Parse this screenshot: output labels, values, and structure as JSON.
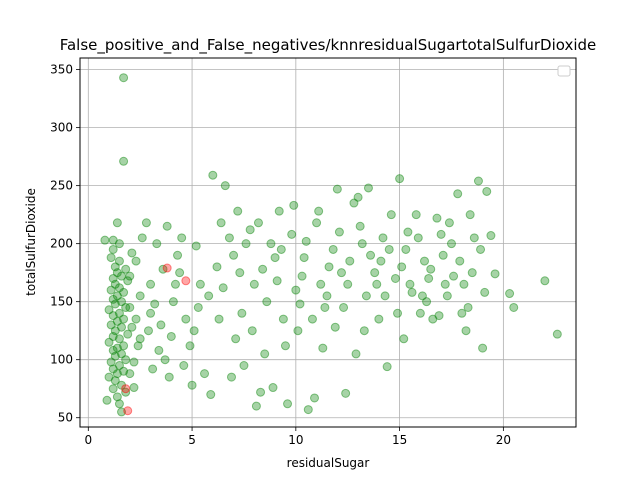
{
  "chart_data": {
    "type": "scatter",
    "title": "False_positive_and_False_negatives/knnresidualSugartotalSulfurDioxide",
    "xlabel": "residualSugar",
    "ylabel": "totalSulfurDioxide",
    "xlim": [
      -0.4,
      23.5
    ],
    "ylim": [
      42,
      360
    ],
    "x_ticks": [
      0,
      5,
      10,
      15,
      20
    ],
    "y_ticks": [
      50,
      100,
      150,
      200,
      250,
      300,
      350
    ],
    "grid": true,
    "legend": {
      "placement": "top-right",
      "entries": []
    },
    "colors": {
      "correct": "#008000",
      "misclassified": "#ff0000"
    },
    "marker_alpha": 0.35,
    "series": [
      {
        "color": "#008000",
        "points": [
          [
            1.7,
            343
          ],
          [
            1.7,
            271
          ],
          [
            1.4,
            218
          ],
          [
            1.2,
            203
          ],
          [
            0.8,
            203
          ],
          [
            1.5,
            200
          ],
          [
            1.2,
            195
          ],
          [
            1.1,
            188
          ],
          [
            1.5,
            185
          ],
          [
            1.3,
            180
          ],
          [
            1.8,
            178
          ],
          [
            1.4,
            175
          ],
          [
            1.6,
            172
          ],
          [
            1.2,
            170
          ],
          [
            1.9,
            168
          ],
          [
            1.3,
            165
          ],
          [
            1.5,
            162
          ],
          [
            1.1,
            160
          ],
          [
            1.7,
            158
          ],
          [
            1.4,
            155
          ],
          [
            1.2,
            152
          ],
          [
            1.6,
            150
          ],
          [
            1.3,
            148
          ],
          [
            1.8,
            145
          ],
          [
            1.0,
            143
          ],
          [
            1.5,
            140
          ],
          [
            1.2,
            138
          ],
          [
            1.7,
            135
          ],
          [
            1.4,
            133
          ],
          [
            1.1,
            130
          ],
          [
            1.6,
            128
          ],
          [
            1.3,
            125
          ],
          [
            1.9,
            122
          ],
          [
            1.2,
            120
          ],
          [
            1.5,
            118
          ],
          [
            1.0,
            115
          ],
          [
            1.7,
            112
          ],
          [
            1.4,
            110
          ],
          [
            1.2,
            108
          ],
          [
            1.6,
            105
          ],
          [
            1.3,
            103
          ],
          [
            1.8,
            100
          ],
          [
            1.1,
            98
          ],
          [
            1.5,
            95
          ],
          [
            1.2,
            92
          ],
          [
            1.7,
            90
          ],
          [
            1.4,
            88
          ],
          [
            1.0,
            85
          ],
          [
            1.3,
            82
          ],
          [
            1.6,
            78
          ],
          [
            1.2,
            75
          ],
          [
            1.8,
            72
          ],
          [
            1.4,
            68
          ],
          [
            0.9,
            65
          ],
          [
            1.5,
            62
          ],
          [
            1.6,
            55
          ],
          [
            2.1,
            128
          ],
          [
            2.3,
            135
          ],
          [
            2.0,
            145
          ],
          [
            2.4,
            112
          ],
          [
            2.2,
            98
          ],
          [
            2.5,
            155
          ],
          [
            2.0,
            172
          ],
          [
            2.3,
            185
          ],
          [
            2.1,
            192
          ],
          [
            2.6,
            205
          ],
          [
            2.8,
            218
          ],
          [
            2.0,
            88
          ],
          [
            2.2,
            76
          ],
          [
            2.5,
            118
          ],
          [
            3.0,
            165
          ],
          [
            3.2,
            148
          ],
          [
            2.9,
            125
          ],
          [
            3.4,
            108
          ],
          [
            3.1,
            92
          ],
          [
            3.6,
            178
          ],
          [
            3.3,
            200
          ],
          [
            3.8,
            215
          ],
          [
            3.0,
            140
          ],
          [
            3.5,
            130
          ],
          [
            3.7,
            100
          ],
          [
            3.9,
            85
          ],
          [
            4.1,
            150
          ],
          [
            4.3,
            190
          ],
          [
            4.0,
            120
          ],
          [
            4.5,
            205
          ],
          [
            4.2,
            165
          ],
          [
            4.4,
            175
          ],
          [
            4.7,
            135
          ],
          [
            4.9,
            112
          ],
          [
            4.6,
            95
          ],
          [
            5.0,
            78
          ],
          [
            5.2,
            198
          ],
          [
            5.4,
            165
          ],
          [
            5.1,
            125
          ],
          [
            5.6,
            88
          ],
          [
            5.3,
            145
          ],
          [
            5.8,
            155
          ],
          [
            6.0,
            259
          ],
          [
            6.2,
            180
          ],
          [
            5.9,
            70
          ],
          [
            6.4,
            218
          ],
          [
            6.6,
            250
          ],
          [
            6.3,
            135
          ],
          [
            6.8,
            205
          ],
          [
            6.5,
            162
          ],
          [
            7.0,
            190
          ],
          [
            7.2,
            228
          ],
          [
            6.9,
            85
          ],
          [
            7.4,
            140
          ],
          [
            7.1,
            118
          ],
          [
            7.6,
            200
          ],
          [
            7.3,
            175
          ],
          [
            7.8,
            212
          ],
          [
            7.5,
            95
          ],
          [
            8.0,
            165
          ],
          [
            8.2,
            218
          ],
          [
            7.9,
            125
          ],
          [
            8.4,
            178
          ],
          [
            8.1,
            60
          ],
          [
            8.6,
            150
          ],
          [
            8.3,
            72
          ],
          [
            8.8,
            200
          ],
          [
            8.5,
            105
          ],
          [
            9.0,
            188
          ],
          [
            9.2,
            228
          ],
          [
            8.9,
            76
          ],
          [
            9.4,
            135
          ],
          [
            9.1,
            168
          ],
          [
            9.6,
            62
          ],
          [
            9.3,
            195
          ],
          [
            9.8,
            208
          ],
          [
            9.5,
            112
          ],
          [
            10.0,
            160
          ],
          [
            10.2,
            148
          ],
          [
            9.9,
            233
          ],
          [
            10.4,
            188
          ],
          [
            10.1,
            125
          ],
          [
            10.6,
            57
          ],
          [
            10.3,
            172
          ],
          [
            10.8,
            135
          ],
          [
            10.5,
            202
          ],
          [
            11.0,
            218
          ],
          [
            11.2,
            165
          ],
          [
            10.9,
            67
          ],
          [
            11.4,
            145
          ],
          [
            11.1,
            228
          ],
          [
            11.6,
            180
          ],
          [
            11.3,
            110
          ],
          [
            11.8,
            195
          ],
          [
            11.5,
            155
          ],
          [
            12.0,
            247
          ],
          [
            12.2,
            175
          ],
          [
            11.9,
            128
          ],
          [
            12.4,
            71
          ],
          [
            12.1,
            210
          ],
          [
            12.6,
            185
          ],
          [
            12.3,
            145
          ],
          [
            12.8,
            235
          ],
          [
            12.5,
            165
          ],
          [
            13.0,
            240
          ],
          [
            13.2,
            200
          ],
          [
            12.9,
            105
          ],
          [
            13.4,
            155
          ],
          [
            13.1,
            215
          ],
          [
            13.6,
            190
          ],
          [
            13.3,
            125
          ],
          [
            13.8,
            175
          ],
          [
            13.5,
            248
          ],
          [
            14.0,
            135
          ],
          [
            14.2,
            205
          ],
          [
            13.9,
            165
          ],
          [
            14.4,
            94
          ],
          [
            14.1,
            185
          ],
          [
            14.6,
            225
          ],
          [
            14.3,
            155
          ],
          [
            14.8,
            170
          ],
          [
            14.5,
            195
          ],
          [
            15.0,
            256
          ],
          [
            15.2,
            118
          ],
          [
            14.9,
            140
          ],
          [
            15.4,
            210
          ],
          [
            15.1,
            180
          ],
          [
            15.6,
            158
          ],
          [
            15.3,
            195
          ],
          [
            15.8,
            225
          ],
          [
            15.5,
            165
          ],
          [
            16.0,
            140
          ],
          [
            16.2,
            185
          ],
          [
            15.9,
            205
          ],
          [
            16.4,
            170
          ],
          [
            16.1,
            155
          ],
          [
            16.6,
            135
          ],
          [
            16.3,
            150
          ],
          [
            16.8,
            222
          ],
          [
            16.5,
            178
          ],
          [
            17.0,
            208
          ],
          [
            17.2,
            165
          ],
          [
            16.9,
            138
          ],
          [
            17.4,
            218
          ],
          [
            17.1,
            190
          ],
          [
            17.6,
            172
          ],
          [
            17.3,
            155
          ],
          [
            17.8,
            243
          ],
          [
            17.5,
            200
          ],
          [
            18.0,
            140
          ],
          [
            18.2,
            125
          ],
          [
            17.9,
            185
          ],
          [
            18.4,
            225
          ],
          [
            18.1,
            165
          ],
          [
            18.6,
            205
          ],
          [
            18.3,
            145
          ],
          [
            18.8,
            254
          ],
          [
            18.5,
            175
          ],
          [
            19.0,
            110
          ],
          [
            19.2,
            245
          ],
          [
            18.9,
            195
          ],
          [
            19.4,
            207
          ],
          [
            19.1,
            158
          ],
          [
            19.6,
            174
          ],
          [
            20.3,
            157
          ],
          [
            20.5,
            145
          ],
          [
            22.0,
            168
          ],
          [
            22.6,
            122
          ]
        ]
      },
      {
        "color": "#ff0000",
        "points": [
          [
            3.8,
            179
          ],
          [
            4.7,
            168
          ],
          [
            1.8,
            75
          ],
          [
            1.9,
            56
          ]
        ]
      }
    ]
  }
}
